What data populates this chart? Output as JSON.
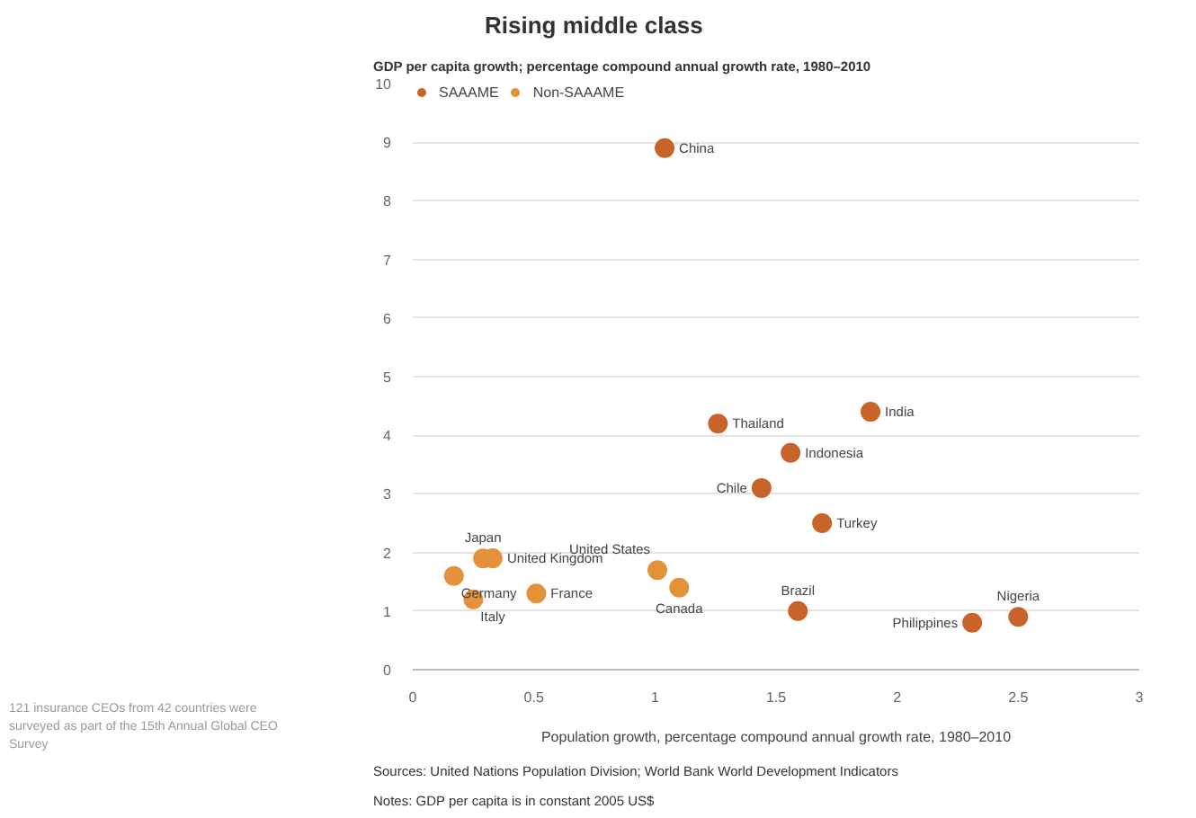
{
  "chart_data": {
    "type": "scatter",
    "title": "Rising middle class",
    "ylabel": "GDP per capita growth; percentage compound annual growth rate, 1980–2010",
    "xlabel": "Population growth, percentage compound annual growth rate, 1980–2010",
    "series": [
      {
        "name": "SAAAME",
        "color": "#c8642a",
        "x": [
          1.04,
          1.26,
          1.89,
          1.56,
          1.44,
          1.69,
          1.59,
          2.31,
          2.5
        ],
        "values": [
          8.9,
          4.2,
          4.4,
          3.7,
          3.1,
          2.5,
          1.0,
          0.8,
          0.9
        ]
      },
      {
        "name": "Non-SAAAME",
        "color": "#e3923a",
        "x": [
          0.29,
          0.33,
          0.17,
          0.25,
          0.51,
          1.01,
          1.1
        ],
        "values": [
          1.9,
          1.9,
          1.6,
          1.2,
          1.3,
          1.7,
          1.4
        ]
      }
    ],
    "xlim": [
      0,
      3
    ],
    "ylim": [
      0,
      10
    ],
    "xticks": [
      0,
      0.5,
      1,
      1.5,
      2,
      2.5,
      3
    ],
    "yticks": [
      0,
      1,
      2,
      3,
      4,
      5,
      6,
      7,
      8,
      9,
      10
    ],
    "grid": "y",
    "legend": "top left",
    "marker": "circle",
    "annotations": [
      {
        "text": "China",
        "x": 1.04,
        "y": 8.9
      },
      {
        "text": "Thailand",
        "x": 1.26,
        "y": 4.2
      },
      {
        "text": "India",
        "x": 1.89,
        "y": 4.4
      },
      {
        "text": "Indonesia",
        "x": 1.56,
        "y": 3.7
      },
      {
        "text": "Chile",
        "x": 1.44,
        "y": 3.1
      },
      {
        "text": "Turkey",
        "x": 1.69,
        "y": 2.5
      },
      {
        "text": "Brazil",
        "x": 1.59,
        "y": 1.0
      },
      {
        "text": "Philippines",
        "x": 2.31,
        "y": 0.8
      },
      {
        "text": "Nigeria",
        "x": 2.5,
        "y": 0.9
      },
      {
        "text": "Japan",
        "x": 0.29,
        "y": 1.9
      },
      {
        "text": "United Kingdom",
        "x": 0.33,
        "y": 1.9
      },
      {
        "text": "Germany",
        "x": 0.17,
        "y": 1.6
      },
      {
        "text": "Italy",
        "x": 0.25,
        "y": 1.2
      },
      {
        "text": "France",
        "x": 0.51,
        "y": 1.3
      },
      {
        "text": "United States",
        "x": 1.01,
        "y": 1.7
      },
      {
        "text": "Canada",
        "x": 1.1,
        "y": 1.4
      },
      "Sources: United Nations Population Division; World Bank World Development Indicators",
      "Notes: GDP per capita is in constant 2005 US$",
      "121 insurance CEOs from 42 countries were surveyed as part of the 15th Annual Global CEO Survey"
    ]
  }
}
